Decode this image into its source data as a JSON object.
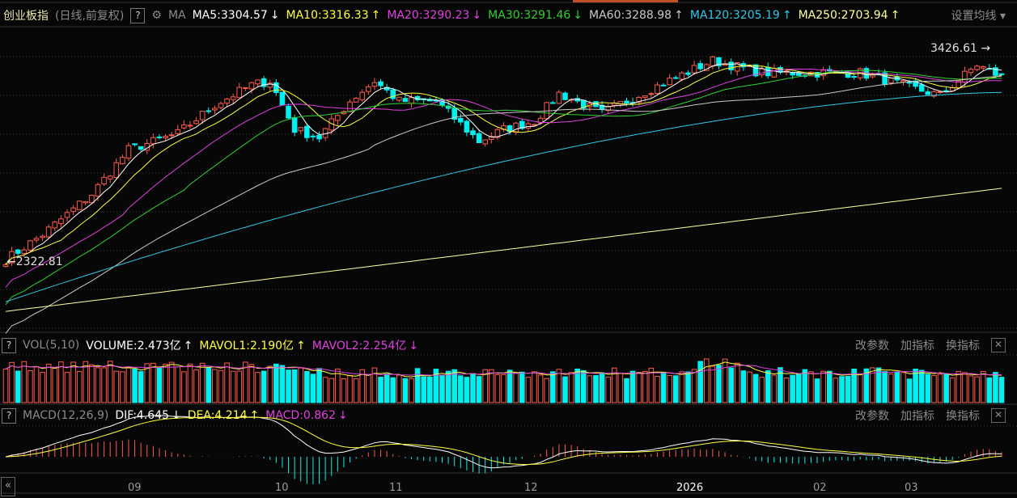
{
  "header": {
    "index_name": "创业板指",
    "period": "(日线,前复权)",
    "help": "?",
    "ma_label": "MA",
    "ma": [
      {
        "label": "MA5:3304.57",
        "arrow": "↓",
        "color": "#ffffff"
      },
      {
        "label": "MA10:3316.33",
        "arrow": "↑",
        "color": "#ffff3c"
      },
      {
        "label": "MA20:3290.23",
        "arrow": "↓",
        "color": "#e040e0"
      },
      {
        "label": "MA30:3291.46",
        "arrow": "↓",
        "color": "#30d030"
      },
      {
        "label": "MA60:3288.98",
        "arrow": "↑",
        "color": "#c8c8c8"
      },
      {
        "label": "MA120:3205.19",
        "arrow": "↑",
        "color": "#30c8e8"
      },
      {
        "label": "MA250:2703.94",
        "arrow": "↑",
        "color": "#ffffa0"
      }
    ],
    "settings": "设置均线 ▾"
  },
  "price_labels": {
    "high": "3426.61 →",
    "low": "←2322.81"
  },
  "volume": {
    "help": "?",
    "title": "VOL(5,10)",
    "items": [
      {
        "label": "VOLUME:2.473亿",
        "arrow": "↑",
        "color": "#ffffff"
      },
      {
        "label": "MAVOL1:2.190亿",
        "arrow": "↑",
        "color": "#ffff3c"
      },
      {
        "label": "MAVOL2:2.254亿",
        "arrow": "↓",
        "color": "#e040e0"
      }
    ]
  },
  "macd": {
    "help": "?",
    "title": "MACD(12,26,9)",
    "items": [
      {
        "label": "DIF:4.645",
        "arrow": "↓",
        "color": "#ffffff"
      },
      {
        "label": "DEA:4.214",
        "arrow": "↑",
        "color": "#ffff3c"
      },
      {
        "label": "MACD:0.862",
        "arrow": "↓",
        "color": "#e040e0"
      }
    ]
  },
  "tools": {
    "change_params": "改参数",
    "add_indicator": "加指标",
    "switch_indicator": "换指标",
    "close": "✕"
  },
  "xaxis": {
    "scroll_left": "«",
    "labels": [
      "09",
      "10",
      "11",
      "12",
      "2026",
      "02",
      "03"
    ]
  },
  "colors": {
    "up": "#ff5a4a",
    "down": "#00f0f0",
    "background": "#070707"
  },
  "chart_data": {
    "type": "candlestick",
    "high": 3426.61,
    "low": 2322.81,
    "close_path": [
      [
        0,
        2330
      ],
      [
        6,
        2462
      ],
      [
        14,
        2674
      ],
      [
        20,
        2906
      ],
      [
        28,
        2990
      ],
      [
        34,
        3140
      ],
      [
        40,
        3245
      ],
      [
        43,
        3265
      ],
      [
        47,
        3012
      ],
      [
        51,
        2970
      ],
      [
        56,
        3160
      ],
      [
        60,
        3265
      ],
      [
        64,
        3160
      ],
      [
        70,
        3160
      ],
      [
        77,
        2950
      ],
      [
        81,
        3012
      ],
      [
        86,
        3055
      ],
      [
        90,
        3200
      ],
      [
        97,
        3097
      ],
      [
        105,
        3224
      ],
      [
        115,
        3372
      ],
      [
        123,
        3308
      ],
      [
        131,
        3308
      ],
      [
        139,
        3308
      ],
      [
        148,
        3224
      ],
      [
        152,
        3190
      ],
      [
        158,
        3350
      ],
      [
        162,
        3287
      ]
    ],
    "ma120_range": [
      2110,
      3205.19
    ],
    "ma250_range": [
      2060,
      2703.94
    ]
  }
}
